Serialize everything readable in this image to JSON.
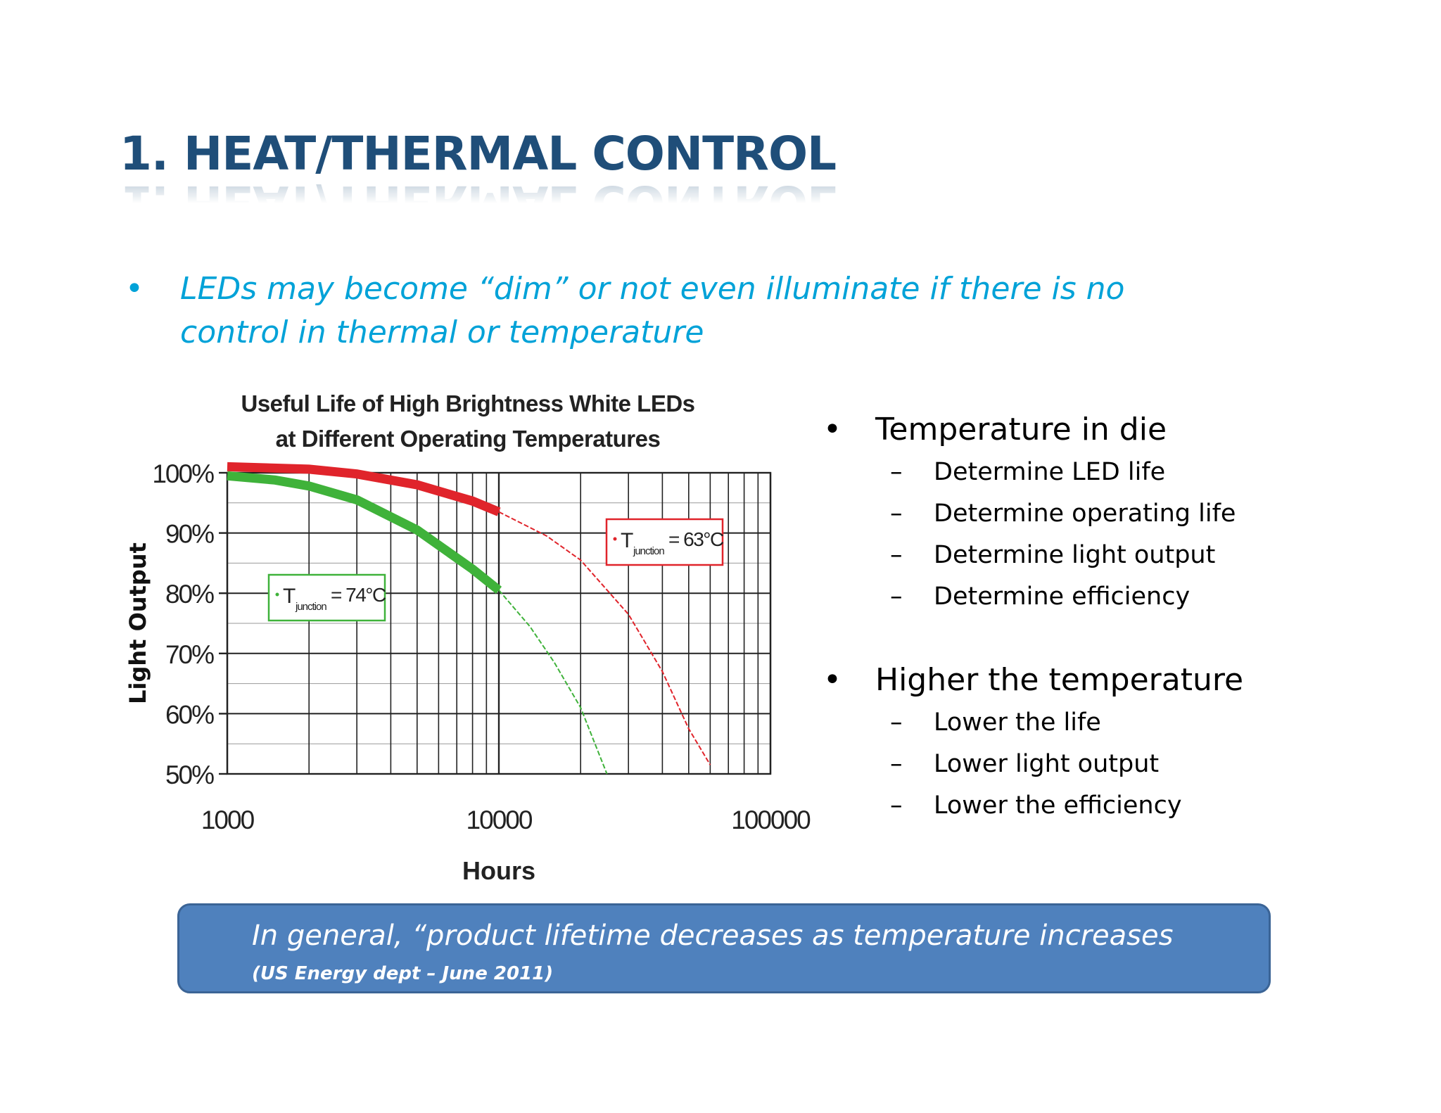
{
  "slide": {
    "title": "1. HEAT/THERMAL CONTROL",
    "intro_bullet": "•",
    "intro_text": "LEDs may become “dim” or not even illuminate if there is no control in thermal or temperature"
  },
  "right_list": {
    "bullet_symbol": "•",
    "dash_symbol": "–",
    "groups": [
      {
        "heading": "Temperature in die",
        "items": [
          "Determine LED life",
          "Determine operating life",
          "Determine light output",
          "Determine efficiency"
        ]
      },
      {
        "heading": "Higher the temperature",
        "items": [
          "Lower the life",
          "Lower light output",
          "Lower the efficiency"
        ]
      }
    ]
  },
  "callout": {
    "main": "In general, “product lifetime decreases as temperature increases",
    "source": "(US Energy dept – June 2011)"
  },
  "chart_data": {
    "type": "line",
    "title_lines": [
      "Useful Life of High Brightness White LEDs",
      "at Different Operating Temperatures"
    ],
    "xlabel": "Hours",
    "ylabel": "Light Output",
    "x_scale": "log",
    "xlim": [
      1000,
      100000
    ],
    "ylim": [
      50,
      100
    ],
    "x_ticks": [
      "1000",
      "10000",
      "100000"
    ],
    "y_ticks": [
      "100%",
      "90%",
      "80%",
      "70%",
      "60%",
      "50%"
    ],
    "y_tick_values": [
      100,
      90,
      80,
      70,
      60,
      50
    ],
    "grid": true,
    "series": [
      {
        "name": "T junction = 63°C",
        "color": "#e0242b",
        "label_prefix": "T",
        "label_sub": "junction",
        "label_suffix": "= 63°C",
        "x": [
          1000,
          2000,
          3000,
          5000,
          8000,
          10000,
          15000,
          20000,
          30000,
          40000,
          50000,
          60000
        ],
        "y": [
          101,
          100.6,
          99.8,
          98,
          95.3,
          93.5,
          89.5,
          85.5,
          76.5,
          67,
          57.5,
          51.5
        ]
      },
      {
        "name": "T junction = 74°C",
        "color": "#3fb23a",
        "label_prefix": "T",
        "label_sub": "junction",
        "label_suffix": "= 74°C",
        "x": [
          1000,
          1500,
          2000,
          3000,
          5000,
          8000,
          10000,
          13000,
          16000,
          20000,
          25000
        ],
        "y": [
          99.5,
          98.8,
          97.8,
          95.5,
          90.5,
          84,
          80.5,
          74.5,
          68.5,
          61,
          50
        ]
      }
    ]
  }
}
